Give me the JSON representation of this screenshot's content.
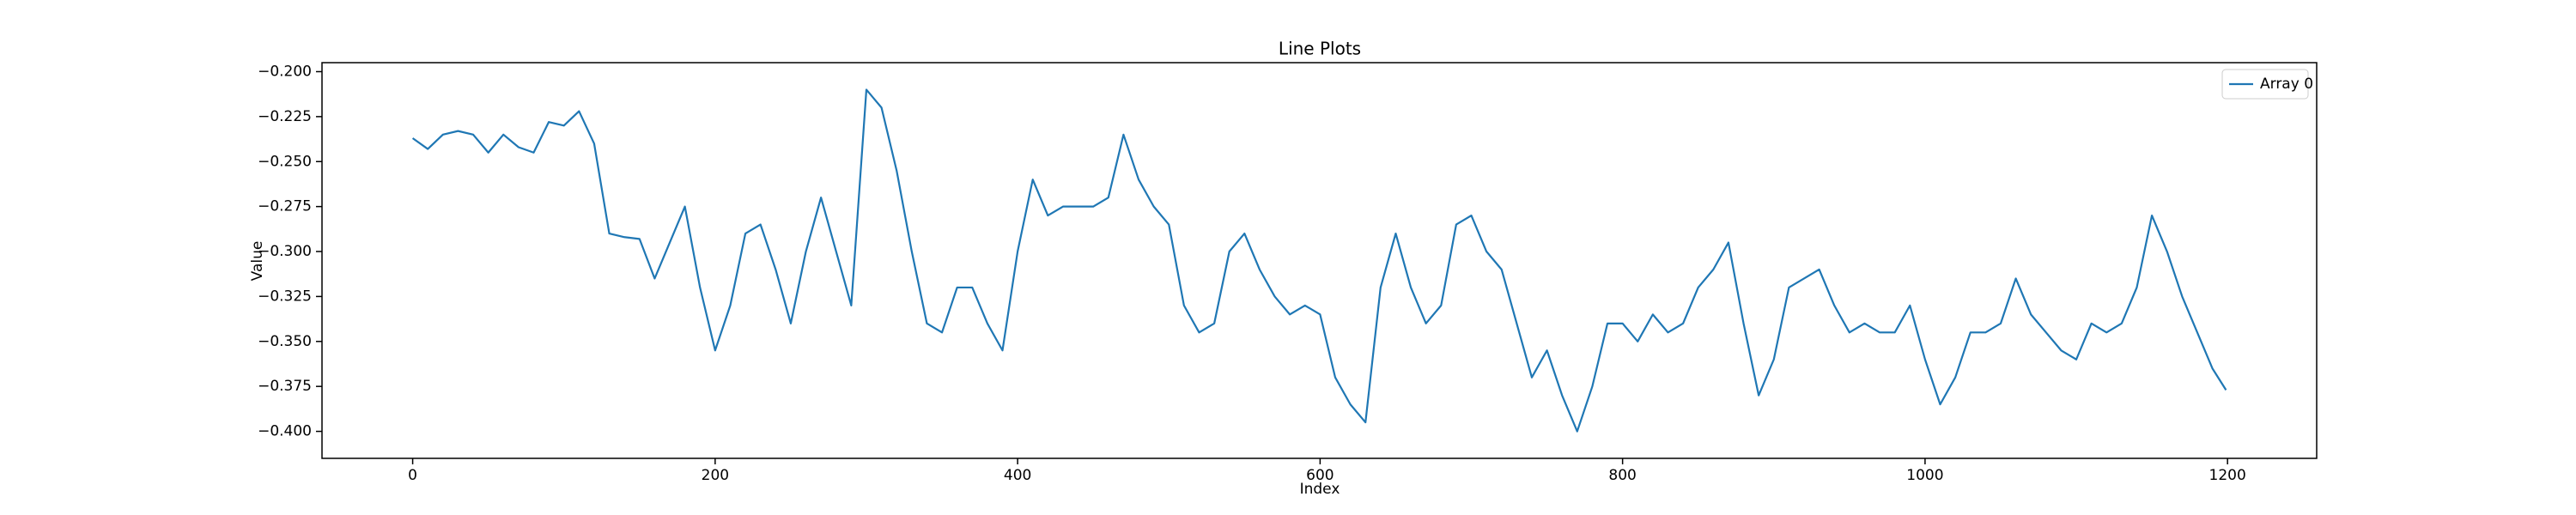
{
  "chart_data": {
    "type": "line",
    "title": "Line Plots",
    "x_label": "Index",
    "y_label": "Value",
    "x": [
      0,
      10,
      20,
      30,
      40,
      50,
      60,
      70,
      80,
      90,
      100,
      110,
      120,
      130,
      140,
      150,
      160,
      170,
      180,
      190,
      200,
      210,
      220,
      230,
      240,
      250,
      260,
      270,
      280,
      290,
      300,
      310,
      320,
      330,
      340,
      350,
      360,
      370,
      380,
      390,
      400,
      410,
      420,
      430,
      440,
      450,
      460,
      470,
      480,
      490,
      500,
      510,
      520,
      530,
      540,
      550,
      560,
      570,
      580,
      590,
      600,
      610,
      620,
      630,
      640,
      650,
      660,
      670,
      680,
      690,
      700,
      710,
      720,
      730,
      740,
      750,
      760,
      770,
      780,
      790,
      800,
      810,
      820,
      830,
      840,
      850,
      860,
      870,
      880,
      890,
      900,
      910,
      920,
      930,
      940,
      950,
      960,
      970,
      980,
      990,
      1000,
      1010,
      1020,
      1030,
      1040,
      1050,
      1060,
      1070,
      1080,
      1090,
      1100,
      1110,
      1120,
      1130,
      1140,
      1150,
      1160,
      1170,
      1180,
      1190,
      1199
    ],
    "series": [
      {
        "name": "Array 0",
        "color": "#1f77b4",
        "values": [
          -0.237,
          -0.243,
          -0.235,
          -0.233,
          -0.235,
          -0.245,
          -0.235,
          -0.242,
          -0.245,
          -0.228,
          -0.23,
          -0.222,
          -0.24,
          -0.29,
          -0.292,
          -0.293,
          -0.315,
          -0.295,
          -0.275,
          -0.32,
          -0.355,
          -0.33,
          -0.29,
          -0.285,
          -0.31,
          -0.34,
          -0.3,
          -0.27,
          -0.3,
          -0.33,
          -0.21,
          -0.22,
          -0.255,
          -0.3,
          -0.34,
          -0.345,
          -0.32,
          -0.32,
          -0.34,
          -0.355,
          -0.3,
          -0.26,
          -0.28,
          -0.275,
          -0.275,
          -0.275,
          -0.27,
          -0.235,
          -0.26,
          -0.275,
          -0.285,
          -0.33,
          -0.345,
          -0.34,
          -0.3,
          -0.29,
          -0.31,
          -0.325,
          -0.335,
          -0.33,
          -0.335,
          -0.37,
          -0.385,
          -0.395,
          -0.32,
          -0.29,
          -0.32,
          -0.34,
          -0.33,
          -0.285,
          -0.28,
          -0.3,
          -0.31,
          -0.34,
          -0.37,
          -0.355,
          -0.38,
          -0.4,
          -0.375,
          -0.34,
          -0.34,
          -0.35,
          -0.335,
          -0.345,
          -0.34,
          -0.32,
          -0.31,
          -0.295,
          -0.34,
          -0.38,
          -0.36,
          -0.32,
          -0.315,
          -0.31,
          -0.33,
          -0.345,
          -0.34,
          -0.345,
          -0.345,
          -0.33,
          -0.36,
          -0.385,
          -0.37,
          -0.345,
          -0.345,
          -0.34,
          -0.315,
          -0.335,
          -0.345,
          -0.355,
          -0.36,
          -0.34,
          -0.345,
          -0.34,
          -0.32,
          -0.28,
          -0.3,
          -0.325,
          -0.345,
          -0.365,
          -0.377
        ]
      }
    ],
    "xlim": [
      -59.95,
      1258.95
    ],
    "ylim": [
      -0.415,
      -0.195
    ],
    "xticks": [
      0,
      200,
      400,
      600,
      800,
      1000,
      1200
    ],
    "yticks": [
      {
        "value": -0.2,
        "label": "−0.200"
      },
      {
        "value": -0.225,
        "label": "−0.225"
      },
      {
        "value": -0.25,
        "label": "−0.250"
      },
      {
        "value": -0.275,
        "label": "−0.275"
      },
      {
        "value": -0.3,
        "label": "−0.300"
      },
      {
        "value": -0.325,
        "label": "−0.325"
      },
      {
        "value": -0.35,
        "label": "−0.350"
      },
      {
        "value": -0.375,
        "label": "−0.375"
      },
      {
        "value": -0.4,
        "label": "−0.400"
      }
    ],
    "grid": false,
    "legend": "upper right"
  }
}
